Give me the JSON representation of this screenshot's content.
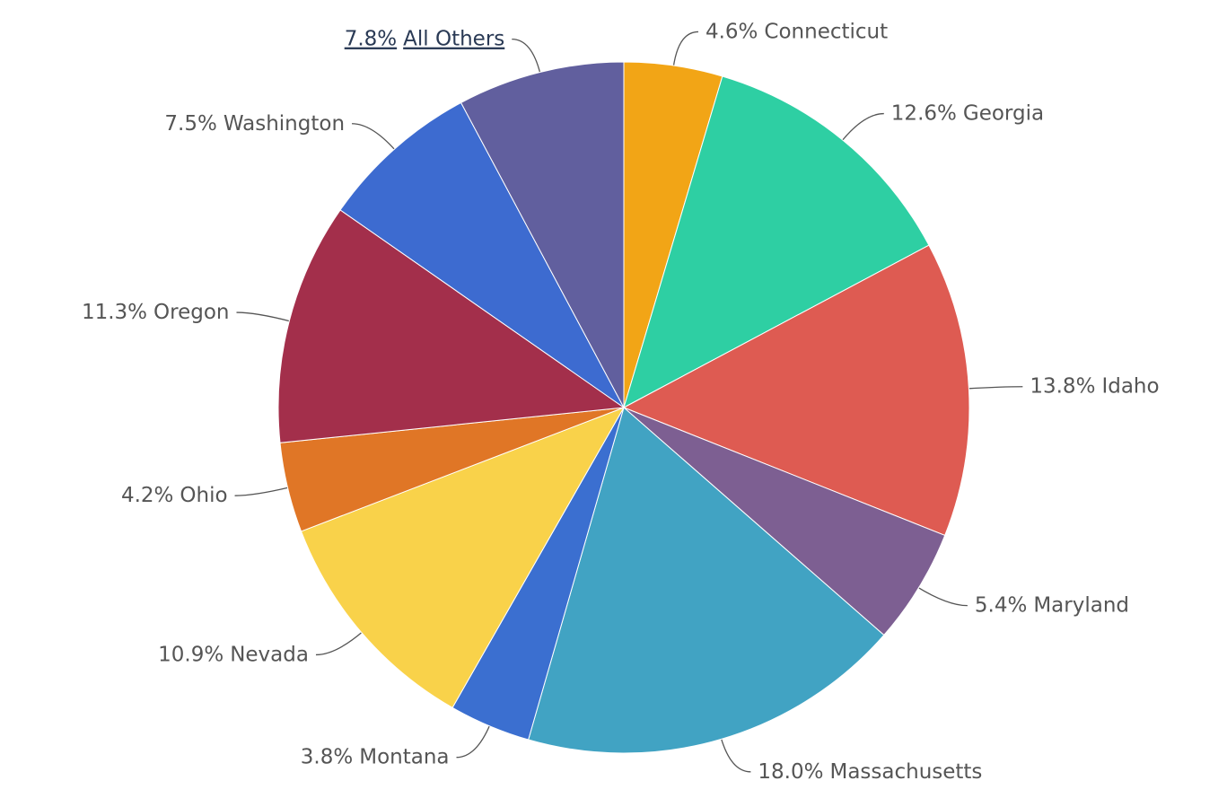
{
  "chart_data": {
    "type": "pie",
    "categories": [
      "Connecticut",
      "Georgia",
      "Idaho",
      "Maryland",
      "Massachusetts",
      "Montana",
      "Nevada",
      "Ohio",
      "Oregon",
      "Washington",
      "All Others"
    ],
    "values": [
      4.6,
      12.6,
      13.8,
      5.4,
      18.0,
      3.8,
      10.9,
      4.2,
      11.3,
      7.5,
      7.8
    ],
    "value_labels": [
      "4.6%",
      "12.6%",
      "13.8%",
      "5.4%",
      "18.0%",
      "3.8%",
      "10.9%",
      "4.2%",
      "11.3%",
      "7.5%",
      "7.8%"
    ],
    "colors": [
      "#f2a516",
      "#2ecfa3",
      "#de5b52",
      "#7d5f92",
      "#41a3c3",
      "#3b6fd0",
      "#f9d24a",
      "#e07626",
      "#a32f4b",
      "#3d6bd0",
      "#615f9e"
    ]
  }
}
